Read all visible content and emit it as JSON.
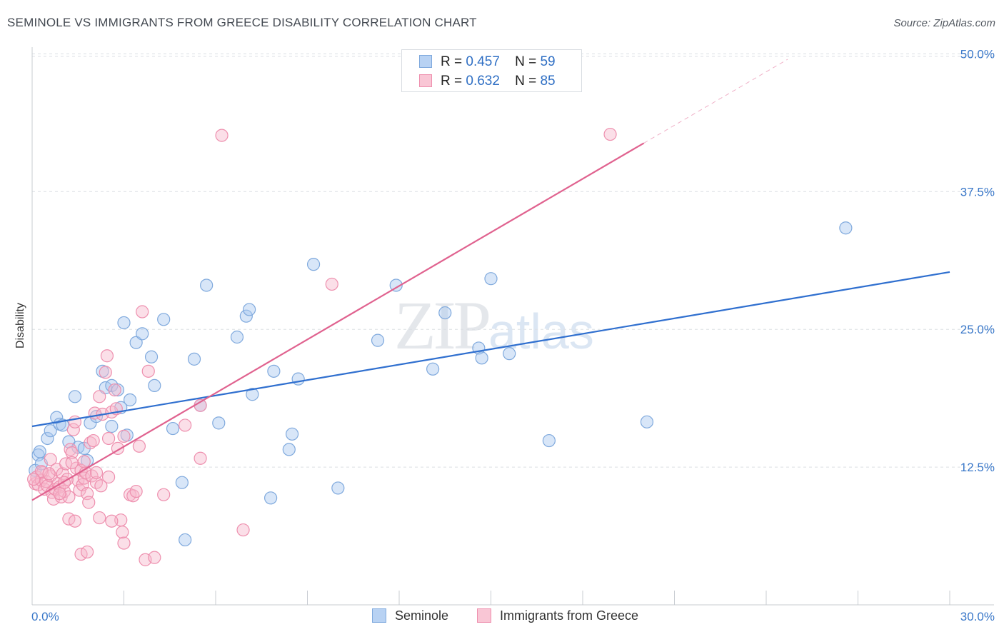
{
  "header": {
    "title": "SEMINOLE VS IMMIGRANTS FROM GREECE DISABILITY CORRELATION CHART",
    "source": "Source: ZipAtlas.com"
  },
  "watermark": {
    "zip": "ZIP",
    "atlas": "atlas"
  },
  "legend": {
    "series": [
      {
        "r_label": "R =",
        "r_value": "0.457",
        "n_label": "N =",
        "n_value": "59"
      },
      {
        "r_label": "R =",
        "r_value": "0.632",
        "n_label": "N =",
        "n_value": "85"
      }
    ]
  },
  "bottom_legend": {
    "items": [
      "Seminole",
      "Immigrants from Greece"
    ]
  },
  "colors": {
    "seminole_fill": "#a9c8ef",
    "seminole_stroke": "#7fa9dd",
    "seminole_line": "#2f6fcf",
    "greece_fill": "#f7b8cb",
    "greece_stroke": "#ee8fae",
    "greece_line": "#e0628f",
    "grid": "#dcdfe4",
    "tick_label": "#3a78c9"
  },
  "chart_data": {
    "type": "scatter",
    "title": "SEMINOLE VS IMMIGRANTS FROM GREECE DISABILITY CORRELATION CHART",
    "xlabel": "",
    "ylabel": "Disability",
    "xlim": [
      0,
      30
    ],
    "ylim": [
      0,
      52
    ],
    "x_tick_labels": [
      "0.0%",
      "30.0%"
    ],
    "y_ticks": [
      12.5,
      25.0,
      37.5,
      50.0
    ],
    "y_tick_labels": [
      "12.5%",
      "25.0%",
      "37.5%",
      "50.0%"
    ],
    "grid": true,
    "legend_position": "top-center",
    "series": [
      {
        "name": "Seminole",
        "trend": {
          "x": [
            0,
            30
          ],
          "y": [
            16.2,
            30.2
          ]
        },
        "points": [
          [
            0.2,
            13.6
          ],
          [
            0.5,
            15.1
          ],
          [
            0.6,
            15.8
          ],
          [
            0.8,
            17.0
          ],
          [
            0.9,
            16.4
          ],
          [
            1.0,
            16.3
          ],
          [
            1.2,
            14.8
          ],
          [
            1.4,
            18.9
          ],
          [
            1.5,
            14.3
          ],
          [
            1.7,
            14.2
          ],
          [
            1.8,
            13.1
          ],
          [
            1.9,
            16.5
          ],
          [
            2.1,
            17.1
          ],
          [
            2.3,
            21.2
          ],
          [
            2.4,
            19.7
          ],
          [
            2.6,
            16.2
          ],
          [
            2.6,
            19.9
          ],
          [
            2.8,
            19.5
          ],
          [
            2.9,
            17.9
          ],
          [
            3.0,
            25.6
          ],
          [
            3.1,
            15.4
          ],
          [
            3.2,
            18.6
          ],
          [
            3.4,
            23.8
          ],
          [
            3.6,
            24.6
          ],
          [
            3.9,
            22.5
          ],
          [
            4.0,
            19.9
          ],
          [
            4.3,
            25.9
          ],
          [
            4.6,
            16.0
          ],
          [
            4.9,
            11.1
          ],
          [
            5.0,
            5.9
          ],
          [
            5.3,
            22.3
          ],
          [
            5.5,
            18.1
          ],
          [
            5.7,
            29.0
          ],
          [
            6.1,
            16.5
          ],
          [
            6.7,
            24.3
          ],
          [
            7.0,
            26.2
          ],
          [
            7.1,
            26.8
          ],
          [
            7.2,
            19.1
          ],
          [
            7.9,
            21.2
          ],
          [
            7.8,
            9.7
          ],
          [
            8.4,
            14.1
          ],
          [
            8.5,
            15.5
          ],
          [
            8.7,
            20.5
          ],
          [
            9.2,
            30.9
          ],
          [
            10.0,
            10.6
          ],
          [
            11.3,
            24.0
          ],
          [
            11.9,
            29.0
          ],
          [
            13.1,
            21.4
          ],
          [
            13.5,
            26.5
          ],
          [
            14.6,
            23.3
          ],
          [
            14.7,
            22.4
          ],
          [
            15.0,
            29.6
          ],
          [
            15.6,
            22.8
          ],
          [
            16.9,
            14.9
          ],
          [
            20.1,
            16.6
          ],
          [
            26.6,
            34.2
          ],
          [
            0.1,
            12.2
          ],
          [
            0.3,
            12.8
          ],
          [
            0.25,
            13.9
          ]
        ]
      },
      {
        "name": "Immigrants from Greece",
        "trend": {
          "x": [
            0,
            20
          ],
          "y": [
            9.5,
            41.9
          ]
        },
        "trend_extension": {
          "x": [
            20,
            24.7
          ],
          "y": [
            41.9,
            49.5
          ]
        },
        "points": [
          [
            0.1,
            11.0
          ],
          [
            0.15,
            11.6
          ],
          [
            0.2,
            10.9
          ],
          [
            0.3,
            11.3
          ],
          [
            0.35,
            12.0
          ],
          [
            0.4,
            10.5
          ],
          [
            0.45,
            11.2
          ],
          [
            0.5,
            10.8
          ],
          [
            0.6,
            11.7
          ],
          [
            0.65,
            10.2
          ],
          [
            0.7,
            9.6
          ],
          [
            0.75,
            10.5
          ],
          [
            0.8,
            12.3
          ],
          [
            0.85,
            11.0
          ],
          [
            0.9,
            10.7
          ],
          [
            0.95,
            9.8
          ],
          [
            1.0,
            11.9
          ],
          [
            1.05,
            10.3
          ],
          [
            1.1,
            12.8
          ],
          [
            1.15,
            11.4
          ],
          [
            1.2,
            9.8
          ],
          [
            1.25,
            14.1
          ],
          [
            1.3,
            13.8
          ],
          [
            1.35,
            15.9
          ],
          [
            1.4,
            16.6
          ],
          [
            1.45,
            12.4
          ],
          [
            1.5,
            11.3
          ],
          [
            1.55,
            10.4
          ],
          [
            1.6,
            12.2
          ],
          [
            1.65,
            10.9
          ],
          [
            1.7,
            11.5
          ],
          [
            1.75,
            12.0
          ],
          [
            1.8,
            10.1
          ],
          [
            1.85,
            9.3
          ],
          [
            1.9,
            14.7
          ],
          [
            1.95,
            11.7
          ],
          [
            2.0,
            14.9
          ],
          [
            2.05,
            17.4
          ],
          [
            2.1,
            11.1
          ],
          [
            2.2,
            18.9
          ],
          [
            2.25,
            10.8
          ],
          [
            2.3,
            17.3
          ],
          [
            2.4,
            21.1
          ],
          [
            2.45,
            22.6
          ],
          [
            2.5,
            15.1
          ],
          [
            2.6,
            17.5
          ],
          [
            2.7,
            19.5
          ],
          [
            2.75,
            17.8
          ],
          [
            2.8,
            14.2
          ],
          [
            2.9,
            7.7
          ],
          [
            2.95,
            6.6
          ],
          [
            3.0,
            15.3
          ],
          [
            3.2,
            10.0
          ],
          [
            3.3,
            9.9
          ],
          [
            3.4,
            10.3
          ],
          [
            3.5,
            14.4
          ],
          [
            3.6,
            26.6
          ],
          [
            3.7,
            4.1
          ],
          [
            3.8,
            21.2
          ],
          [
            4.0,
            4.3
          ],
          [
            4.3,
            10.0
          ],
          [
            5.0,
            16.3
          ],
          [
            5.5,
            13.3
          ],
          [
            5.5,
            18.1
          ],
          [
            6.2,
            42.6
          ],
          [
            6.9,
            6.8
          ],
          [
            9.8,
            29.1
          ],
          [
            18.9,
            42.7
          ],
          [
            1.2,
            7.8
          ],
          [
            1.4,
            7.6
          ],
          [
            1.6,
            4.6
          ],
          [
            1.8,
            4.8
          ],
          [
            2.2,
            7.9
          ],
          [
            2.6,
            7.6
          ],
          [
            3.0,
            5.6
          ],
          [
            0.3,
            12.1
          ],
          [
            0.6,
            13.2
          ],
          [
            0.9,
            10.1
          ],
          [
            1.3,
            12.9
          ],
          [
            1.7,
            13.0
          ],
          [
            2.1,
            12.0
          ],
          [
            2.5,
            11.6
          ],
          [
            0.05,
            11.4
          ],
          [
            0.55,
            11.9
          ],
          [
            1.05,
            11.1
          ]
        ]
      }
    ]
  }
}
